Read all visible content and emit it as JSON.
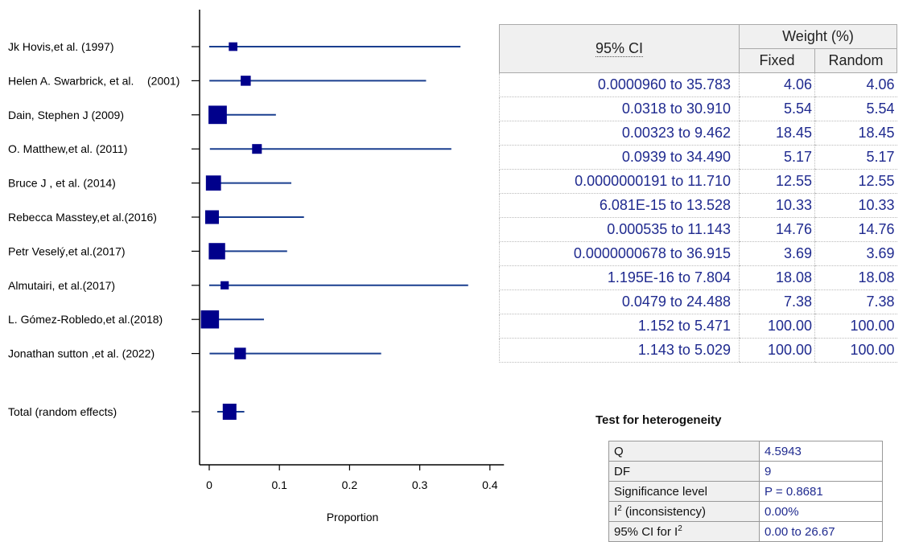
{
  "chart_data": {
    "type": "forest",
    "xlabel": "Proportion",
    "xlim": [
      -0.012,
      0.42
    ],
    "xticks": [
      0,
      0.1,
      0.2,
      0.3,
      0.4
    ],
    "xtick_labels": [
      "0",
      "0.1",
      "0.2",
      "0.3",
      "0.4"
    ],
    "marker_color": "#00008b",
    "line_color": "#1a3f8f",
    "studies": [
      {
        "name": "Jk Hovis,et al. (1997)",
        "estimate": 0.034,
        "lower": 1e-06,
        "upper": 0.358,
        "weight": 4.06
      },
      {
        "name": "Helen A. Swarbrick, et al.",
        "name_suffix": "(2001)",
        "estimate": 0.052,
        "lower": 0.0003,
        "upper": 0.309,
        "weight": 5.54
      },
      {
        "name": "Dain, Stephen J (2009)",
        "estimate": 0.012,
        "lower": 3e-05,
        "upper": 0.095,
        "weight": 18.45
      },
      {
        "name": "O. Matthew,et al. (2011)",
        "estimate": 0.068,
        "lower": 0.0009,
        "upper": 0.345,
        "weight": 5.17
      },
      {
        "name": "Bruce J , et al. (2014)",
        "estimate": 0.006,
        "lower": 0.0,
        "upper": 0.117,
        "weight": 12.55
      },
      {
        "name": "Rebecca Masstey,et al.(2016)",
        "estimate": 0.004,
        "lower": 0.0,
        "upper": 0.135,
        "weight": 10.33
      },
      {
        "name": "Petr Veselý,et al.(2017)",
        "estimate": 0.011,
        "lower": 1e-05,
        "upper": 0.111,
        "weight": 14.76
      },
      {
        "name": "Almutairi, et al.(2017)",
        "estimate": 0.022,
        "lower": 0.0,
        "upper": 0.369,
        "weight": 3.69
      },
      {
        "name": "L. Gómez-Robledo,et al.(2018)",
        "estimate": 0.001,
        "lower": 0.0,
        "upper": 0.078,
        "weight": 18.08
      },
      {
        "name": "Jonathan sutton ,et al. (2022)",
        "estimate": 0.044,
        "lower": 0.0005,
        "upper": 0.245,
        "weight": 7.38
      }
    ],
    "total": {
      "name": "Total (random effects)",
      "estimate": 0.029,
      "lower": 0.0114,
      "upper": 0.05,
      "weight": 100.0
    }
  },
  "ci_table": {
    "header_ci": "95% CI",
    "header_weight": "Weight (%)",
    "header_fixed": "Fixed",
    "header_random": "Random",
    "rows": [
      {
        "ci": "0.0000960 to 35.783",
        "fixed": "4.06",
        "random": "4.06"
      },
      {
        "ci": "0.0318 to 30.910",
        "fixed": "5.54",
        "random": "5.54"
      },
      {
        "ci": "0.00323 to 9.462",
        "fixed": "18.45",
        "random": "18.45"
      },
      {
        "ci": "0.0939 to 34.490",
        "fixed": "5.17",
        "random": "5.17"
      },
      {
        "ci": "0.0000000191 to 11.710",
        "fixed": "12.55",
        "random": "12.55"
      },
      {
        "ci": "6.081E-15 to 13.528",
        "fixed": "10.33",
        "random": "10.33"
      },
      {
        "ci": "0.000535 to 11.143",
        "fixed": "14.76",
        "random": "14.76"
      },
      {
        "ci": "0.0000000678 to 36.915",
        "fixed": "3.69",
        "random": "3.69"
      },
      {
        "ci": "1.195E-16 to 7.804",
        "fixed": "18.08",
        "random": "18.08"
      },
      {
        "ci": "0.0479 to 24.488",
        "fixed": "7.38",
        "random": "7.38"
      },
      {
        "ci": "1.152 to 5.471",
        "fixed": "100.00",
        "random": "100.00"
      },
      {
        "ci": "1.143 to 5.029",
        "fixed": "100.00",
        "random": "100.00"
      }
    ]
  },
  "heterogeneity": {
    "title": "Test for heterogeneity",
    "rows": [
      {
        "label": "Q",
        "value": "4.5943"
      },
      {
        "label": "DF",
        "value": "9"
      },
      {
        "label": "Significance level",
        "value": "P = 0.8681"
      },
      {
        "label_main": "I",
        "label_sup": "2",
        "label_rest": " (inconsistency)",
        "value": "0.00%"
      },
      {
        "label_main": "95% CI for I",
        "label_sup": "2",
        "label_rest": "",
        "value": "0.00 to 26.67"
      }
    ]
  }
}
